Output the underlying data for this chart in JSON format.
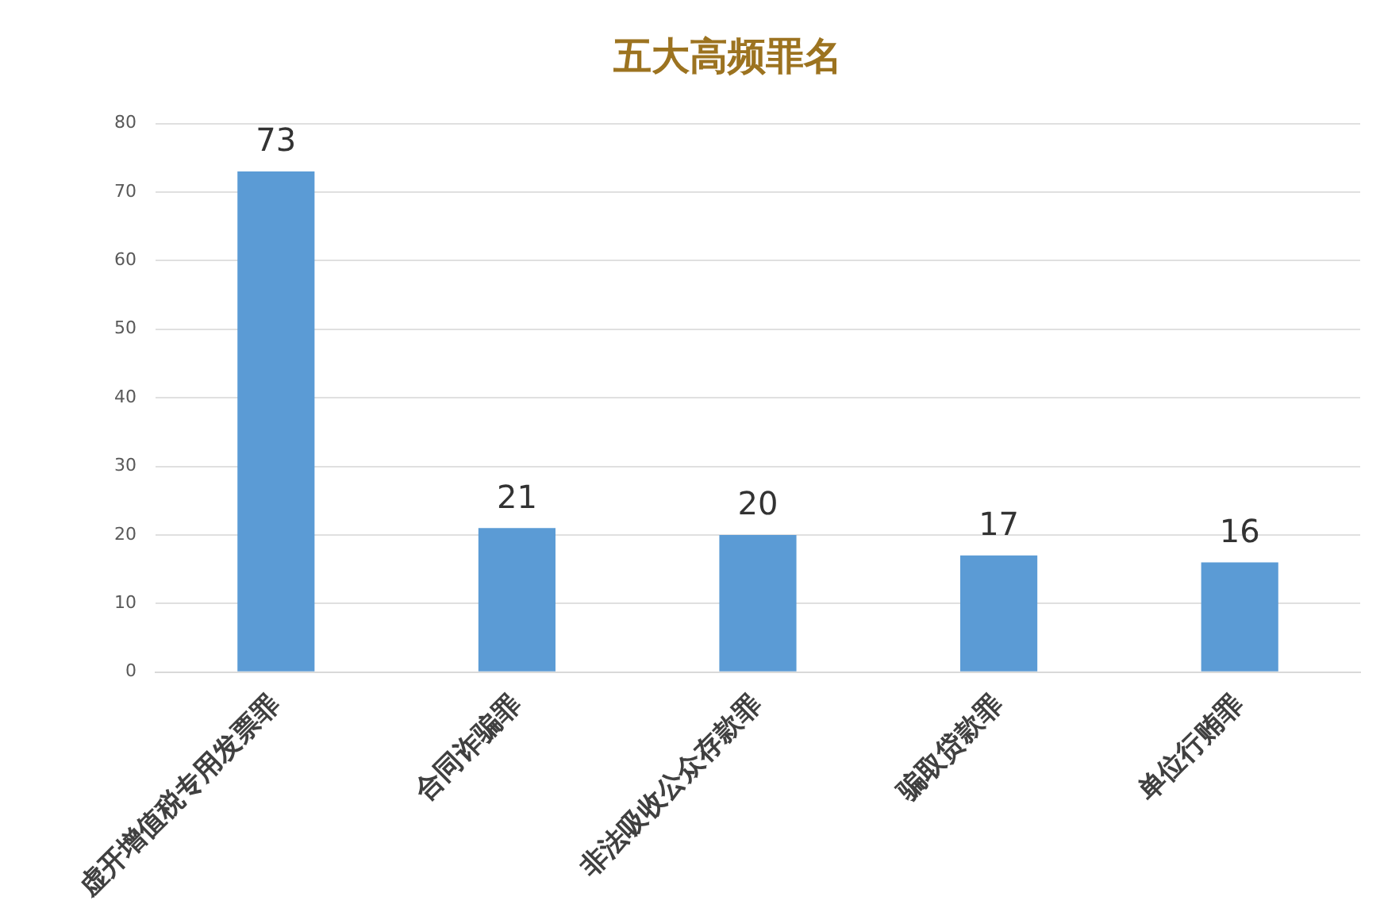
{
  "chart_data": {
    "type": "bar",
    "title": "五大高频罪名",
    "categories": [
      "虚开增值税专用发票罪",
      "合同诈骗罪",
      "非法吸收公众存款罪",
      "骗取贷款罪",
      "单位行贿罪"
    ],
    "values": [
      73,
      21,
      20,
      17,
      16
    ],
    "color": "#5b9bd5",
    "ylim": [
      0,
      80
    ],
    "yticks": [
      0,
      10,
      20,
      30,
      40,
      50,
      60,
      70,
      80
    ],
    "grid": "y",
    "data_labels": true
  }
}
